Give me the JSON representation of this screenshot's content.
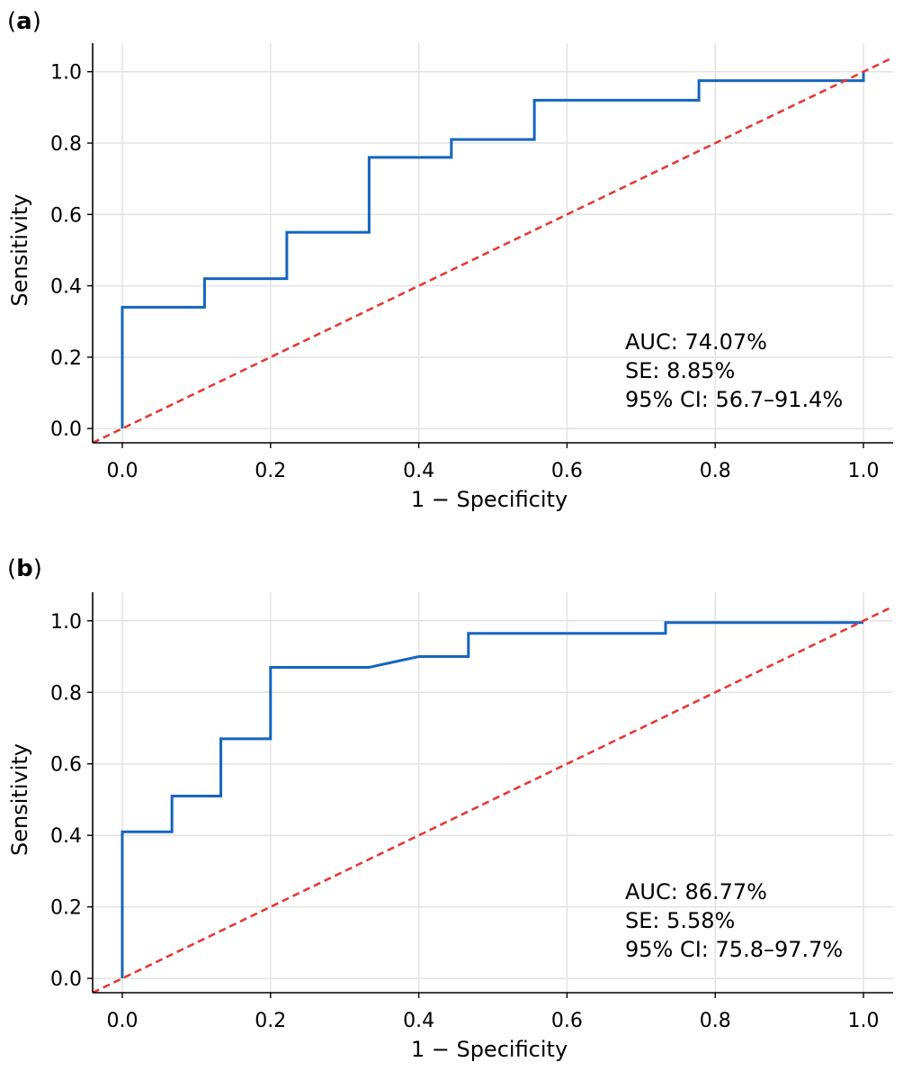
{
  "chart_data": [
    {
      "type": "line",
      "panel_label": "a",
      "xlabel": "1 − Specificity",
      "ylabel": "Sensitivity",
      "xlim": [
        -0.04,
        1.04
      ],
      "ylim": [
        -0.04,
        1.08
      ],
      "xticks": [
        "0.0",
        "0.2",
        "0.4",
        "0.6",
        "0.8",
        "1.0"
      ],
      "yticks": [
        "0.0",
        "0.2",
        "0.4",
        "0.6",
        "0.8",
        "1.0"
      ],
      "grid": true,
      "series": [
        {
          "kind": "roc",
          "color": "#1565c0",
          "x": [
            0.0,
            0.0,
            0.111,
            0.111,
            0.222,
            0.222,
            0.333,
            0.333,
            0.444,
            0.444,
            0.556,
            0.556,
            0.778,
            0.778,
            1.0,
            1.0
          ],
          "y": [
            0.0,
            0.34,
            0.34,
            0.42,
            0.42,
            0.55,
            0.55,
            0.76,
            0.76,
            0.81,
            0.81,
            0.92,
            0.92,
            0.975,
            0.975,
            1.0
          ]
        },
        {
          "kind": "diagonal",
          "color": "#e53935",
          "style": "dashed",
          "x": [
            -0.04,
            1.04
          ],
          "y": [
            -0.04,
            1.04
          ]
        }
      ],
      "annotations": [
        "AUC: 74.07%",
        "SE: 8.85%",
        "95% CI: 56.7–91.4%"
      ]
    },
    {
      "type": "line",
      "panel_label": "b",
      "xlabel": "1 − Specificity",
      "ylabel": "Sensitivity",
      "xlim": [
        -0.04,
        1.04
      ],
      "ylim": [
        -0.04,
        1.08
      ],
      "xticks": [
        "0.0",
        "0.2",
        "0.4",
        "0.6",
        "0.8",
        "1.0"
      ],
      "yticks": [
        "0.0",
        "0.2",
        "0.4",
        "0.6",
        "0.8",
        "1.0"
      ],
      "grid": true,
      "series": [
        {
          "kind": "roc",
          "color": "#1565c0",
          "x": [
            0.0,
            0.0,
            0.067,
            0.067,
            0.133,
            0.133,
            0.2,
            0.2,
            0.333,
            0.4,
            0.467,
            0.467,
            0.733,
            0.733,
            1.0
          ],
          "y": [
            0.0,
            0.41,
            0.41,
            0.51,
            0.51,
            0.67,
            0.67,
            0.87,
            0.87,
            0.9,
            0.9,
            0.965,
            0.965,
            0.995,
            0.995
          ]
        },
        {
          "kind": "diagonal",
          "color": "#e53935",
          "style": "dashed",
          "x": [
            -0.04,
            1.04
          ],
          "y": [
            -0.04,
            1.04
          ]
        }
      ],
      "annotations": [
        "AUC: 86.77%",
        "SE: 5.58%",
        "95% CI: 75.8–97.7%"
      ]
    }
  ]
}
